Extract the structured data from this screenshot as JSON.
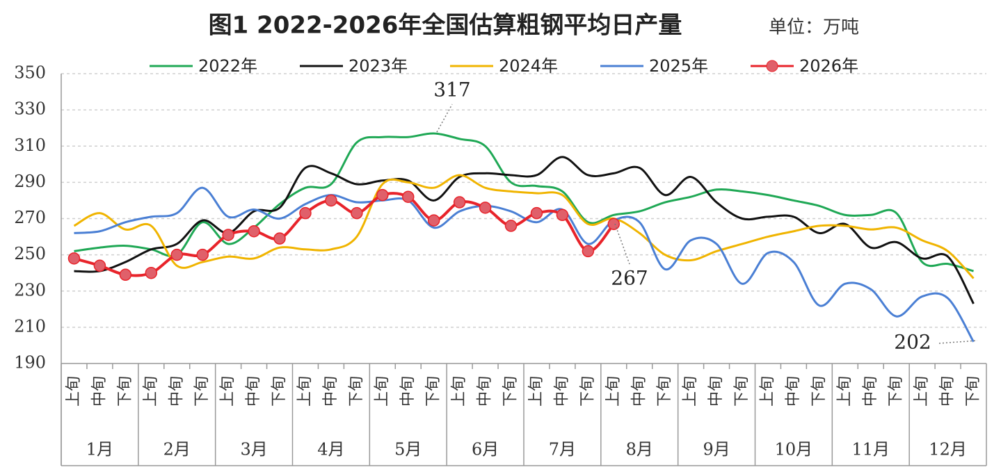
{
  "chart_data": {
    "type": "line",
    "title": "图1 2022-2026年全国估算粗钢平均日产量",
    "subtitle": "单位：万吨",
    "categories": [
      "上旬",
      "中旬",
      "下旬",
      "上旬",
      "中旬",
      "下旬",
      "上旬",
      "中旬",
      "下旬",
      "上旬",
      "中旬",
      "下旬",
      "上旬",
      "中旬",
      "下旬",
      "上旬",
      "中旬",
      "下旬",
      "上旬",
      "中旬",
      "下旬",
      "上旬",
      "中旬",
      "下旬",
      "上旬",
      "中旬",
      "下旬",
      "上旬",
      "中旬",
      "下旬",
      "上旬",
      "中旬",
      "下旬",
      "上旬",
      "中旬",
      "下旬"
    ],
    "months": [
      "1月",
      "2月",
      "3月",
      "4月",
      "5月",
      "6月",
      "7月",
      "8月",
      "9月",
      "10月",
      "11月",
      "12月"
    ],
    "series": [
      {
        "name": "2022年",
        "color": "#1fa855",
        "values": [
          252,
          254,
          255,
          253,
          250,
          268,
          256,
          265,
          278,
          287,
          289,
          312,
          315,
          315,
          317,
          314,
          310,
          290,
          288,
          285,
          268,
          272,
          274,
          279,
          282,
          286,
          285,
          283,
          280,
          277,
          272,
          272,
          273,
          246,
          245,
          241
        ]
      },
      {
        "name": "2023年",
        "color": "#111111",
        "values": [
          241,
          241,
          246,
          253,
          256,
          269,
          262,
          274,
          276,
          298,
          295,
          289,
          291,
          291,
          280,
          293,
          295,
          294,
          294,
          304,
          294,
          295,
          298,
          283,
          293,
          279,
          270,
          271,
          271,
          262,
          267,
          254,
          257,
          248,
          249,
          223
        ]
      },
      {
        "name": "2024年",
        "color": "#f0b400",
        "values": [
          266,
          273,
          264,
          266,
          244,
          246,
          249,
          248,
          254,
          253,
          253,
          260,
          289,
          290,
          287,
          294,
          287,
          285,
          284,
          283,
          267,
          270,
          262,
          250,
          247,
          252,
          256,
          260,
          263,
          266,
          266,
          264,
          265,
          258,
          252,
          237
        ]
      },
      {
        "name": "2025年",
        "color": "#4a7fd4",
        "values": [
          262,
          263,
          268,
          271,
          273,
          287,
          271,
          275,
          270,
          278,
          283,
          279,
          280,
          280,
          265,
          274,
          277,
          274,
          268,
          275,
          256,
          269,
          268,
          242,
          258,
          256,
          234,
          251,
          246,
          222,
          234,
          231,
          216,
          227,
          226,
          202
        ]
      },
      {
        "name": "2026年",
        "color": "#e8232a",
        "marker": true,
        "values": [
          248,
          244,
          239,
          240,
          250,
          250,
          261,
          263,
          259,
          273,
          280,
          273,
          283,
          282,
          269,
          279,
          276,
          266,
          273,
          272,
          252,
          267,
          null,
          null,
          null,
          null,
          null,
          null,
          null,
          null,
          null,
          null,
          null,
          null,
          null,
          null
        ]
      }
    ],
    "annotations": [
      "317",
      "267",
      "202"
    ],
    "ylim": [
      190,
      350
    ],
    "yticks": [
      190,
      210,
      230,
      250,
      270,
      290,
      310,
      330,
      350
    ],
    "grid": true
  }
}
